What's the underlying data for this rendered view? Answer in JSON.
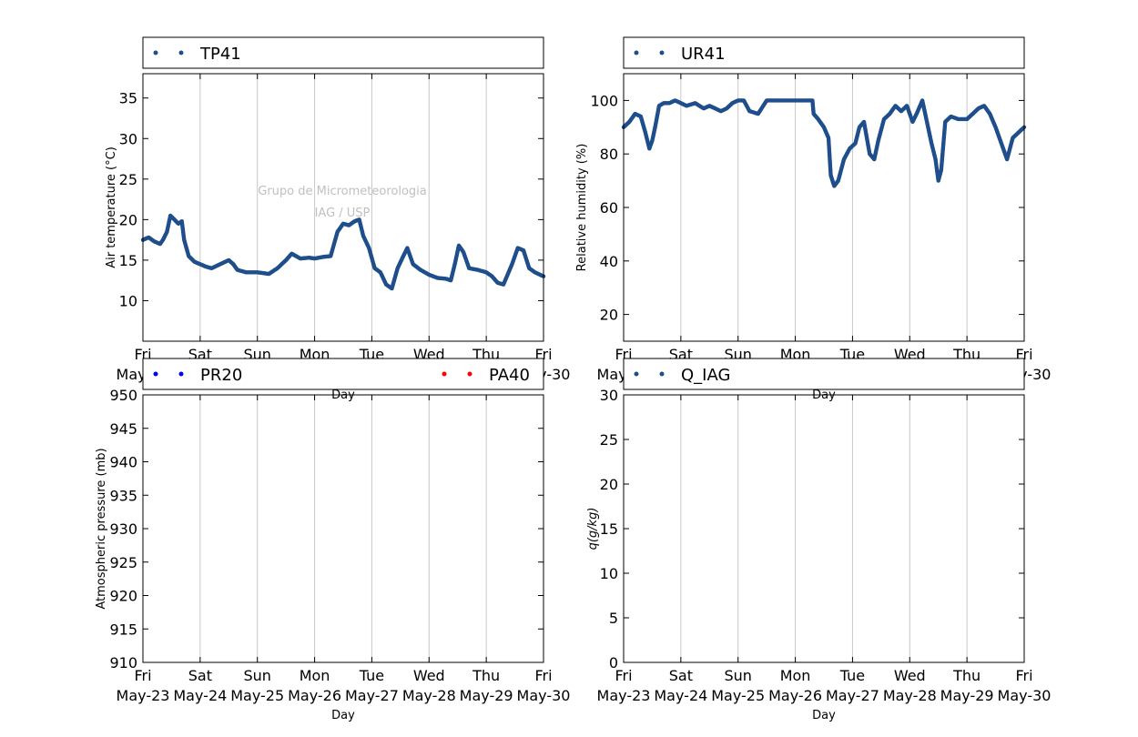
{
  "watermark": {
    "line1": "Grupo de Micrometeorologia",
    "line2": "IAG / USP"
  },
  "x_ticks": [
    {
      "day": "Fri",
      "date": "May-23"
    },
    {
      "day": "Sat",
      "date": "May-24"
    },
    {
      "day": "Sun",
      "date": "May-25"
    },
    {
      "day": "Mon",
      "date": "May-26"
    },
    {
      "day": "Tue",
      "date": "May-27"
    },
    {
      "day": "Wed",
      "date": "May-28"
    },
    {
      "day": "Thu",
      "date": "May-29"
    },
    {
      "day": "Fri",
      "date": "May-30"
    }
  ],
  "colors": {
    "series_blue": "#1f4e8c",
    "pressure_blue": "#0000ff",
    "pressure_red": "#ff0000",
    "grid": "#c8c8c8",
    "watermark": "#c0c0c0"
  },
  "chart_data": [
    {
      "type": "scatter",
      "legend": [
        "TP41"
      ],
      "xlabel": "Day",
      "ylabel": "Air temperature (°C)",
      "ylim": [
        5,
        38
      ],
      "yticks": [
        10,
        15,
        20,
        25,
        30,
        35
      ],
      "xlim_days": [
        0,
        7
      ],
      "grid": "vertical",
      "legend_position": "top",
      "series": [
        {
          "name": "TP41",
          "color": "#1f4e8c",
          "x_days": [
            0,
            0.1,
            0.2,
            0.3,
            0.35,
            0.42,
            0.48,
            0.55,
            0.62,
            0.68,
            0.72,
            0.8,
            0.9,
            1.0,
            1.1,
            1.2,
            1.35,
            1.5,
            1.58,
            1.65,
            1.8,
            2.0,
            2.2,
            2.35,
            2.5,
            2.6,
            2.75,
            2.9,
            3.0,
            3.15,
            3.28,
            3.4,
            3.5,
            3.6,
            3.7,
            3.78,
            3.85,
            3.95,
            4.05,
            4.15,
            4.25,
            4.35,
            4.45,
            4.55,
            4.62,
            4.72,
            4.85,
            5.0,
            5.15,
            5.3,
            5.38,
            5.45,
            5.52,
            5.6,
            5.7,
            5.85,
            6.0,
            6.1,
            6.2,
            6.3,
            6.45,
            6.55,
            6.65,
            6.75,
            6.85,
            7.0
          ],
          "y": [
            17.5,
            17.8,
            17.3,
            17.0,
            17.5,
            18.5,
            20.5,
            20.0,
            19.5,
            19.8,
            17.5,
            15.5,
            14.8,
            14.5,
            14.2,
            14.0,
            14.5,
            15.0,
            14.5,
            13.8,
            13.5,
            13.5,
            13.3,
            14.0,
            15.0,
            15.8,
            15.2,
            15.3,
            15.2,
            15.4,
            15.5,
            18.5,
            19.5,
            19.3,
            19.8,
            20.0,
            18.0,
            16.5,
            14.0,
            13.5,
            12.0,
            11.5,
            14.0,
            15.5,
            16.5,
            14.5,
            13.8,
            13.2,
            12.8,
            12.7,
            12.5,
            14.5,
            16.8,
            16.0,
            14.0,
            13.8,
            13.5,
            13.0,
            12.2,
            12.0,
            14.5,
            16.5,
            16.2,
            14.0,
            13.5,
            13.0
          ]
        }
      ]
    },
    {
      "type": "scatter",
      "legend": [
        "UR41"
      ],
      "xlabel": "Day",
      "ylabel": "Relative humidity (%)",
      "ylim": [
        10,
        110
      ],
      "yticks": [
        20,
        40,
        60,
        80,
        100
      ],
      "xlim_days": [
        0,
        7
      ],
      "grid": "vertical",
      "legend_position": "top",
      "series": [
        {
          "name": "UR41",
          "color": "#1f4e8c",
          "x_days": [
            0,
            0.1,
            0.2,
            0.3,
            0.38,
            0.45,
            0.5,
            0.55,
            0.62,
            0.7,
            0.8,
            0.9,
            1.0,
            1.1,
            1.25,
            1.4,
            1.5,
            1.6,
            1.7,
            1.8,
            1.9,
            2.0,
            2.1,
            2.2,
            2.35,
            2.5,
            2.6,
            2.7,
            2.85,
            3.0,
            3.15,
            3.3,
            3.32,
            3.4,
            3.5,
            3.58,
            3.62,
            3.68,
            3.75,
            3.85,
            3.95,
            4.05,
            4.12,
            4.2,
            4.3,
            4.38,
            4.45,
            4.55,
            4.65,
            4.75,
            4.85,
            4.95,
            5.05,
            5.12,
            5.22,
            5.3,
            5.38,
            5.45,
            5.5,
            5.55,
            5.62,
            5.72,
            5.85,
            6.0,
            6.1,
            6.2,
            6.3,
            6.4,
            6.5,
            6.6,
            6.7,
            6.8,
            6.9,
            7.0
          ],
          "y": [
            90,
            92,
            95,
            94,
            88,
            82,
            85,
            90,
            98,
            99,
            99,
            100,
            99,
            98,
            99,
            97,
            98,
            97,
            96,
            97,
            99,
            100,
            100,
            96,
            95,
            100,
            100,
            100,
            100,
            100,
            100,
            100,
            95,
            93,
            90,
            86,
            72,
            68,
            70,
            78,
            82,
            84,
            90,
            92,
            80,
            78,
            85,
            93,
            95,
            98,
            96,
            98,
            92,
            95,
            100,
            92,
            84,
            78,
            70,
            74,
            92,
            94,
            93,
            93,
            95,
            97,
            98,
            95,
            90,
            84,
            78,
            86,
            88,
            90
          ]
        }
      ]
    },
    {
      "type": "scatter",
      "legend": [
        "PR20",
        "PA40"
      ],
      "xlabel": "Day",
      "ylabel": "Atmospheric pressure (mb)",
      "ylim": [
        910,
        950
      ],
      "yticks": [
        910,
        915,
        920,
        925,
        930,
        935,
        940,
        945,
        950
      ],
      "xlim_days": [
        0,
        7
      ],
      "grid": "vertical",
      "legend_position": "top",
      "series": [
        {
          "name": "PR20",
          "color": "#0000ff",
          "x_days": [],
          "y": []
        },
        {
          "name": "PA40",
          "color": "#ff0000",
          "x_days": [],
          "y": []
        }
      ]
    },
    {
      "type": "scatter",
      "legend": [
        "Q_IAG"
      ],
      "xlabel": "Day",
      "ylabel": "q(g/kg)",
      "ylim": [
        0,
        30
      ],
      "yticks": [
        0,
        5,
        10,
        15,
        20,
        25,
        30
      ],
      "xlim_days": [
        0,
        7
      ],
      "grid": "vertical",
      "legend_position": "top",
      "series": [
        {
          "name": "Q_IAG",
          "color": "#1f4e8c",
          "x_days": [],
          "y": []
        }
      ]
    }
  ]
}
